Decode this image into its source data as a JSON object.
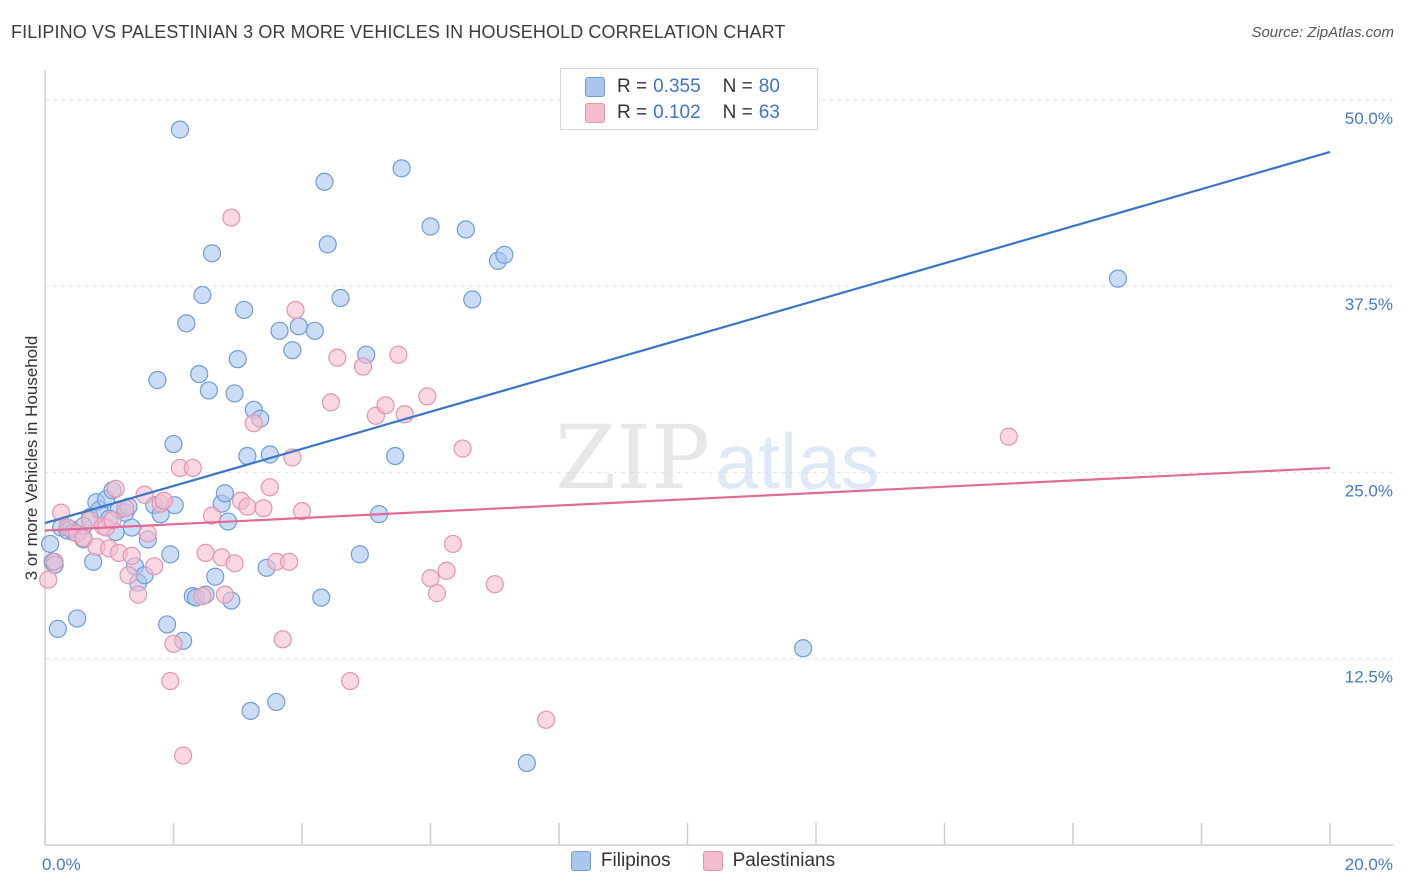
{
  "header": {
    "title": "FILIPINO VS PALESTINIAN 3 OR MORE VEHICLES IN HOUSEHOLD CORRELATION CHART",
    "source": "Source: ZipAtlas.com"
  },
  "watermark": {
    "zip": "ZIP",
    "atlas": "atlas"
  },
  "stats_legend": {
    "rows": [
      {
        "r_label": "R =",
        "r_value": "0.355",
        "n_label": "N =",
        "n_value": "80"
      },
      {
        "r_label": "R =",
        "r_value": "0.102",
        "n_label": "N =",
        "n_value": "63"
      }
    ]
  },
  "bottom_legend": {
    "items": [
      "Filipinos",
      "Palestinians"
    ]
  },
  "colors": {
    "blue_fill": "#a9c6ee",
    "blue_stroke": "#6f9bd8",
    "blue_line": "#3a75c9",
    "pink_fill": "#f5bcd0",
    "pink_stroke": "#e693ad",
    "pink_line": "#e06b98",
    "tick_label": "#4479c9",
    "grid": "#e3e3e3"
  },
  "chart_data": {
    "type": "scatter",
    "title": "FILIPINO VS PALESTINIAN 3 OR MORE VEHICLES IN HOUSEHOLD CORRELATION CHART",
    "xlabel": "",
    "ylabel": "3 or more Vehicles in Household",
    "xlim": [
      0,
      20
    ],
    "ylim": [
      0,
      52
    ],
    "x_tick_labels": [
      "0.0%",
      "20.0%"
    ],
    "y_ticks": [
      12.5,
      25.0,
      37.5,
      50.0
    ],
    "y_tick_labels": [
      "12.5%",
      "25.0%",
      "37.5%",
      "50.0%"
    ],
    "grid": true,
    "legend_position": "top-center",
    "series": [
      {
        "name": "Filipinos",
        "r": 0.355,
        "n": 80,
        "trend": {
          "x": [
            0,
            20
          ],
          "y": [
            21.6,
            46.5
          ]
        },
        "points": [
          [
            0.08,
            20.2
          ],
          [
            0.12,
            19.0
          ],
          [
            0.15,
            18.8
          ],
          [
            0.2,
            14.5
          ],
          [
            0.25,
            21.3
          ],
          [
            0.35,
            21.1
          ],
          [
            0.4,
            21.2
          ],
          [
            0.45,
            21.0
          ],
          [
            0.5,
            15.2
          ],
          [
            0.6,
            20.5
          ],
          [
            0.7,
            22.0
          ],
          [
            0.75,
            19.0
          ],
          [
            0.8,
            23.0
          ],
          [
            0.85,
            22.5
          ],
          [
            0.95,
            23.2
          ],
          [
            1.05,
            23.8
          ],
          [
            1.1,
            21.0
          ],
          [
            1.15,
            22.5
          ],
          [
            1.25,
            22.3
          ],
          [
            1.35,
            21.3
          ],
          [
            1.4,
            18.7
          ],
          [
            1.45,
            17.6
          ],
          [
            1.55,
            18.1
          ],
          [
            1.6,
            20.5
          ],
          [
            1.7,
            22.8
          ],
          [
            1.75,
            31.2
          ],
          [
            1.8,
            22.2
          ],
          [
            1.9,
            14.8
          ],
          [
            1.95,
            19.5
          ],
          [
            2.0,
            26.9
          ],
          [
            2.02,
            22.8
          ],
          [
            2.1,
            48.0
          ],
          [
            2.15,
            13.7
          ],
          [
            2.2,
            35.0
          ],
          [
            2.3,
            16.7
          ],
          [
            2.35,
            16.6
          ],
          [
            2.4,
            31.6
          ],
          [
            2.45,
            36.9
          ],
          [
            2.55,
            30.5
          ],
          [
            2.6,
            39.7
          ],
          [
            2.65,
            18.0
          ],
          [
            2.75,
            22.9
          ],
          [
            2.8,
            23.6
          ],
          [
            2.85,
            21.7
          ],
          [
            2.9,
            16.4
          ],
          [
            2.95,
            30.3
          ],
          [
            3.0,
            32.6
          ],
          [
            3.1,
            35.9
          ],
          [
            3.15,
            26.1
          ],
          [
            3.2,
            9.0
          ],
          [
            3.25,
            29.2
          ],
          [
            3.35,
            28.6
          ],
          [
            3.45,
            18.6
          ],
          [
            3.5,
            26.2
          ],
          [
            3.6,
            9.6
          ],
          [
            3.65,
            34.5
          ],
          [
            3.85,
            33.2
          ],
          [
            3.95,
            34.8
          ],
          [
            4.2,
            34.5
          ],
          [
            4.3,
            16.6
          ],
          [
            4.35,
            44.5
          ],
          [
            4.4,
            40.3
          ],
          [
            4.6,
            36.7
          ],
          [
            4.9,
            19.5
          ],
          [
            5.0,
            32.9
          ],
          [
            5.2,
            22.2
          ],
          [
            5.45,
            26.1
          ],
          [
            5.55,
            45.4
          ],
          [
            6.0,
            41.5
          ],
          [
            6.55,
            41.3
          ],
          [
            6.65,
            36.6
          ],
          [
            7.05,
            39.2
          ],
          [
            7.15,
            39.6
          ],
          [
            7.5,
            5.5
          ],
          [
            11.8,
            13.2
          ],
          [
            16.7,
            38.0
          ],
          [
            0.6,
            21.4
          ],
          [
            1.3,
            22.7
          ],
          [
            1.0,
            21.9
          ],
          [
            2.5,
            16.8
          ]
        ]
      },
      {
        "name": "Palestinians",
        "r": 0.102,
        "n": 63,
        "trend": {
          "x": [
            0,
            20
          ],
          "y": [
            21.1,
            25.3
          ]
        },
        "points": [
          [
            0.05,
            17.8
          ],
          [
            0.15,
            19.0
          ],
          [
            0.25,
            22.3
          ],
          [
            0.35,
            21.3
          ],
          [
            0.5,
            20.9
          ],
          [
            0.6,
            20.6
          ],
          [
            0.7,
            21.8
          ],
          [
            0.8,
            20.0
          ],
          [
            0.9,
            21.4
          ],
          [
            0.95,
            21.3
          ],
          [
            1.0,
            19.9
          ],
          [
            1.05,
            21.8
          ],
          [
            1.1,
            23.9
          ],
          [
            1.15,
            19.6
          ],
          [
            1.25,
            22.6
          ],
          [
            1.3,
            18.1
          ],
          [
            1.35,
            19.4
          ],
          [
            1.45,
            16.8
          ],
          [
            1.55,
            23.5
          ],
          [
            1.6,
            20.9
          ],
          [
            1.7,
            18.7
          ],
          [
            1.8,
            22.9
          ],
          [
            1.85,
            23.1
          ],
          [
            1.95,
            11.0
          ],
          [
            2.0,
            13.5
          ],
          [
            2.1,
            25.3
          ],
          [
            2.15,
            6.0
          ],
          [
            2.3,
            25.3
          ],
          [
            2.45,
            16.7
          ],
          [
            2.5,
            19.6
          ],
          [
            2.6,
            22.1
          ],
          [
            2.75,
            19.3
          ],
          [
            2.8,
            16.8
          ],
          [
            2.9,
            42.1
          ],
          [
            2.95,
            18.9
          ],
          [
            3.05,
            23.1
          ],
          [
            3.15,
            22.7
          ],
          [
            3.25,
            28.3
          ],
          [
            3.4,
            22.6
          ],
          [
            3.5,
            24.0
          ],
          [
            3.6,
            19.0
          ],
          [
            3.7,
            13.8
          ],
          [
            3.8,
            19.0
          ],
          [
            3.85,
            26.0
          ],
          [
            3.9,
            35.9
          ],
          [
            4.0,
            22.4
          ],
          [
            4.45,
            29.7
          ],
          [
            4.55,
            32.7
          ],
          [
            4.75,
            11.0
          ],
          [
            4.95,
            32.1
          ],
          [
            5.15,
            28.8
          ],
          [
            5.3,
            29.5
          ],
          [
            5.5,
            32.9
          ],
          [
            5.6,
            28.9
          ],
          [
            5.95,
            30.1
          ],
          [
            6.0,
            17.9
          ],
          [
            6.1,
            16.9
          ],
          [
            6.25,
            18.4
          ],
          [
            6.35,
            20.2
          ],
          [
            6.5,
            26.6
          ],
          [
            7.0,
            17.5
          ],
          [
            7.8,
            8.4
          ],
          [
            15.0,
            27.4
          ]
        ]
      }
    ]
  }
}
